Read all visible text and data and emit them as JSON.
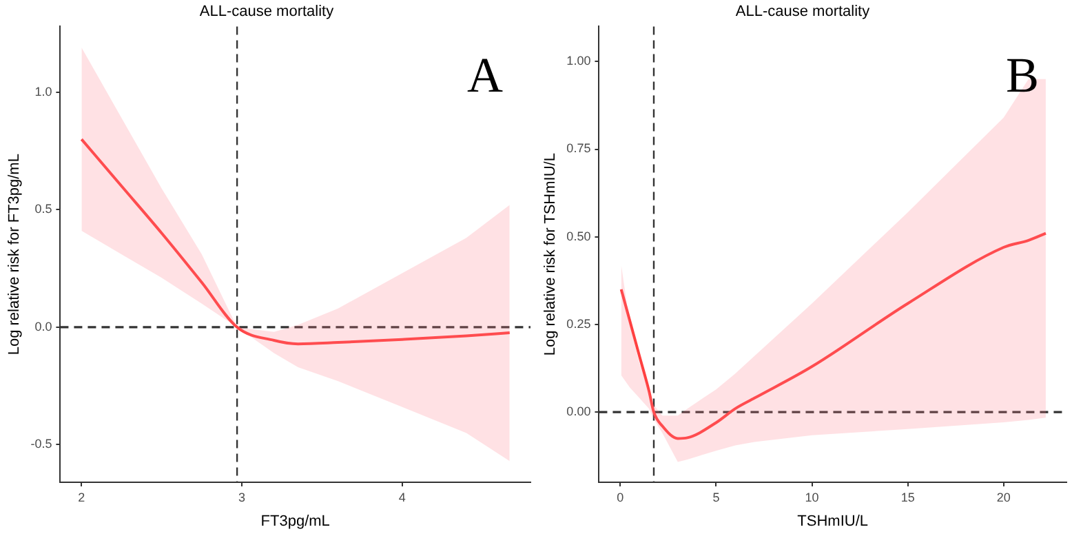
{
  "chart_data": [
    {
      "type": "line",
      "title": "ALL-cause mortality",
      "xlabel": "FT3pg/mL",
      "ylabel": "Log relative risk for FT3pg/mL",
      "xlim": [
        1.867,
        4.8
      ],
      "ylim": [
        -0.66,
        1.28
      ],
      "xticks": [
        2,
        3,
        4
      ],
      "yticks": [
        -0.5,
        {
          "value": 0,
          "label": "0.0"
        },
        0.5,
        {
          "value": 1,
          "label": "1.0"
        }
      ],
      "grid": false,
      "legend": false,
      "marker": "none",
      "line_style": "solid",
      "annotations": [
        "A"
      ],
      "ref_lines": [
        {
          "axis": "x",
          "value": 2.97,
          "label": null,
          "color": "#333333",
          "line_style": "dashed"
        },
        {
          "axis": "y",
          "value": 0,
          "label": null,
          "color": "#333333",
          "line_style": "dashed"
        }
      ],
      "series": [
        {
          "color": "#ff4040",
          "x": [
            2,
            2.25,
            2.5,
            2.75,
            2.97,
            3.2,
            3.35,
            3.6,
            4.0,
            4.4,
            4.67
          ],
          "values": [
            0.8,
            0.6,
            0.4,
            0.19,
            0,
            -0.056,
            -0.071,
            -0.065,
            -0.052,
            -0.037,
            -0.024
          ],
          "upper": [
            1.19,
            0.89,
            0.59,
            0.31,
            0,
            -0.02,
            0.01,
            0.08,
            0.23,
            0.38,
            0.52
          ],
          "lower": [
            0.41,
            0.31,
            0.21,
            0.1,
            0,
            -0.11,
            -0.17,
            -0.23,
            -0.34,
            -0.45,
            -0.57
          ]
        }
      ]
    },
    {
      "type": "line",
      "title": "ALL-cause mortality",
      "xlabel": "TSHmIU/L",
      "ylabel": "Log relative risk for TSHmIU/L",
      "xlim": [
        -1.11,
        23.28
      ],
      "ylim": [
        -0.2,
        1.1
      ],
      "xticks": [
        0,
        5,
        10,
        15,
        20
      ],
      "yticks": [
        {
          "value": 0,
          "label": "0.00"
        },
        0.25,
        {
          "value": 0.5,
          "label": "0.50"
        },
        0.75,
        {
          "value": 1,
          "label": "1.00"
        }
      ],
      "grid": false,
      "legend": false,
      "marker": "none",
      "line_style": "solid",
      "annotations": [
        "B"
      ],
      "ref_lines": [
        {
          "axis": "x",
          "value": 1.75,
          "label": null,
          "color": "#333333",
          "line_style": "dashed"
        },
        {
          "axis": "y",
          "value": 0,
          "label": null,
          "color": "#333333",
          "line_style": "dashed"
        }
      ],
      "series": [
        {
          "color": "#ff4040",
          "x": [
            0.05,
            0.5,
            1,
            1.5,
            1.75,
            2.2,
            3,
            3.5,
            5,
            6,
            7,
            10,
            15,
            20,
            21.3,
            22.2
          ],
          "values": [
            0.35,
            0.26,
            0.16,
            0.06,
            0,
            -0.04,
            -0.075,
            -0.073,
            -0.03,
            0.01,
            0.04,
            0.13,
            0.31,
            0.47,
            0.49,
            0.51
          ],
          "upper": [
            0.42,
            0.25,
            0.14,
            0.06,
            0.02,
            -0.01,
            -0.01,
            0.01,
            0.065,
            0.11,
            0.16,
            0.31,
            0.57,
            0.84,
            0.95,
            0.95
          ],
          "lower": [
            0.105,
            0.07,
            0.04,
            0.01,
            -0.02,
            -0.06,
            -0.142,
            -0.135,
            -0.11,
            -0.095,
            -0.085,
            -0.066,
            -0.048,
            -0.029,
            -0.022,
            -0.016
          ]
        }
      ]
    }
  ]
}
